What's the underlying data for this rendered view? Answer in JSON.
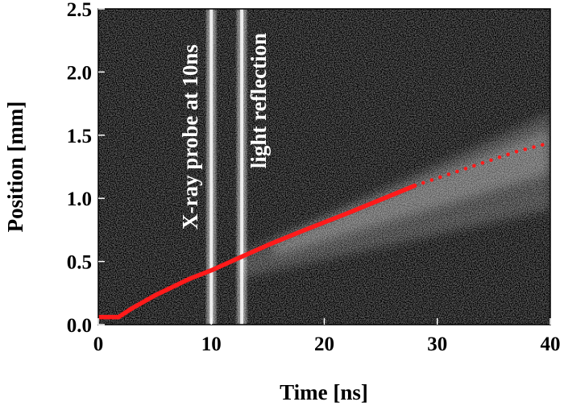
{
  "chart_data": {
    "type": "line",
    "xlabel": "Time [ns]",
    "ylabel": "Position [mm]",
    "xlim": [
      0,
      40
    ],
    "ylim": [
      0,
      2.5
    ],
    "xticks": [
      "0",
      "10",
      "20",
      "30",
      "40"
    ],
    "yticks": [
      "0.0",
      "0.5",
      "1.0",
      "1.5",
      "2.0",
      "2.5"
    ],
    "grid": false,
    "background": "streak image (white signal on black)",
    "annotations": [
      "X-ray probe  at 10ns",
      "light reflection"
    ],
    "series": [
      {
        "style": "solid",
        "color": "#ff1a1a",
        "x": [
          0,
          1.8,
          3,
          5,
          8,
          10,
          12,
          15,
          18,
          20,
          22,
          25,
          28
        ],
        "y": [
          0.06,
          0.06,
          0.13,
          0.23,
          0.36,
          0.43,
          0.51,
          0.63,
          0.74,
          0.81,
          0.88,
          0.99,
          1.1
        ]
      },
      {
        "style": "dotted",
        "color": "#ff1a1a",
        "x": [
          28,
          31,
          34,
          37,
          40
        ],
        "y": [
          1.1,
          1.19,
          1.28,
          1.37,
          1.44
        ]
      }
    ],
    "bright_streaks_x": [
      10,
      12.7
    ]
  }
}
